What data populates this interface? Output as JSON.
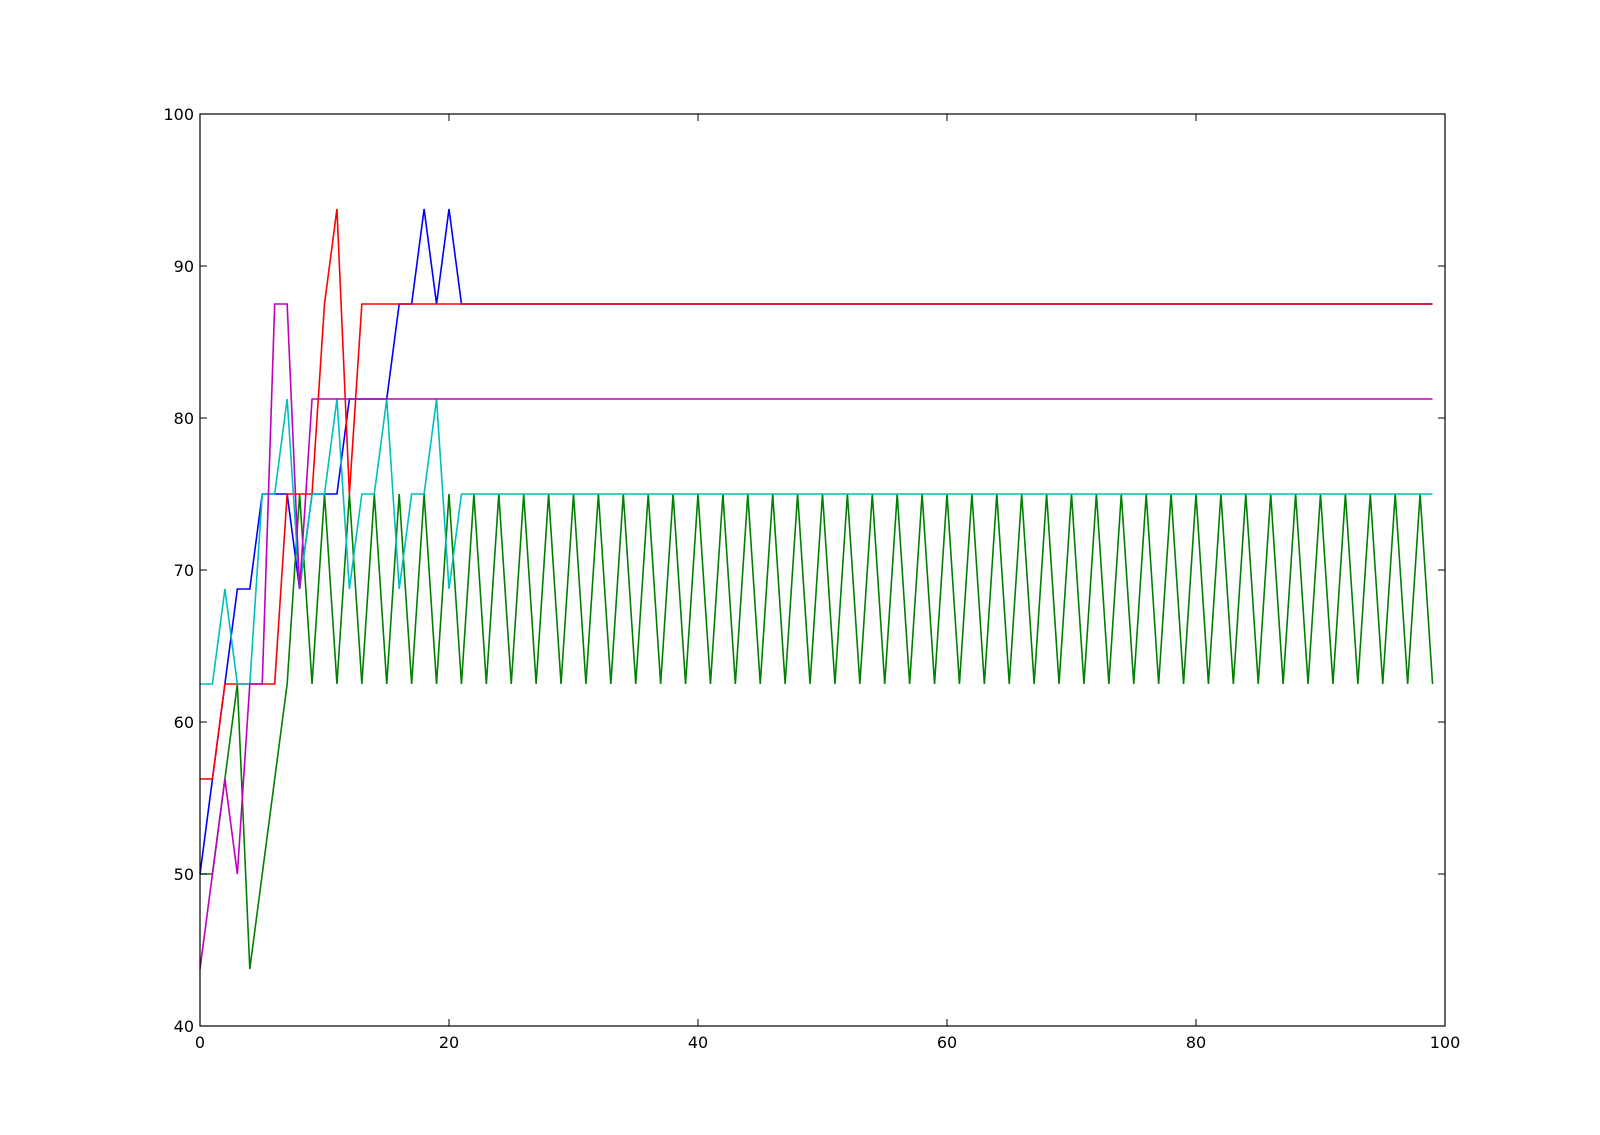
{
  "chart_data": {
    "type": "line",
    "title": "",
    "xlabel": "",
    "ylabel": "",
    "xlim": [
      0,
      100
    ],
    "ylim": [
      40,
      100
    ],
    "xticks": [
      0,
      20,
      40,
      60,
      80,
      100
    ],
    "yticks": [
      40,
      50,
      60,
      70,
      80,
      90,
      100
    ],
    "xtick_labels": [
      "0",
      "20",
      "40",
      "60",
      "80",
      "100"
    ],
    "ytick_labels": [
      "40",
      "50",
      "60",
      "70",
      "80",
      "90",
      "100"
    ],
    "grid": false,
    "legend": "none",
    "x": [
      0,
      1,
      2,
      3,
      4,
      5,
      6,
      7,
      8,
      9,
      10,
      11,
      12,
      13,
      14,
      15,
      16,
      17,
      18,
      19,
      20,
      21,
      22,
      23,
      24,
      25,
      26,
      27,
      28,
      29,
      30,
      31,
      32,
      33,
      34,
      35,
      36,
      37,
      38,
      39,
      40,
      41,
      42,
      43,
      44,
      45,
      46,
      47,
      48,
      49,
      50,
      51,
      52,
      53,
      54,
      55,
      56,
      57,
      58,
      59,
      60,
      61,
      62,
      63,
      64,
      65,
      66,
      67,
      68,
      69,
      70,
      71,
      72,
      73,
      74,
      75,
      76,
      77,
      78,
      79,
      80,
      81,
      82,
      83,
      84,
      85,
      86,
      87,
      88,
      89,
      90,
      91,
      92,
      93,
      94,
      95,
      96,
      97,
      98,
      99
    ],
    "series": [
      {
        "color": "#0000ff",
        "head": [
          50,
          56.25,
          62.5,
          68.75,
          68.75,
          75,
          75,
          75,
          68.75,
          75,
          75,
          75,
          81.25,
          81.25,
          81.25,
          81.25,
          87.5,
          87.5,
          93.75,
          87.5,
          93.75,
          87.5
        ],
        "tail_value": 87.5
      },
      {
        "color": "#008000",
        "head": [
          50,
          50,
          56.25,
          62.5,
          43.75,
          50,
          56.25,
          62.5,
          75,
          62.5,
          75,
          62.5,
          75,
          62.5,
          75,
          62.5,
          75,
          62.5,
          75,
          62.5,
          75,
          62.5
        ],
        "alternate": [
          75,
          62.5
        ]
      },
      {
        "color": "#ff0000",
        "head": [
          56.25,
          56.25,
          62.5,
          62.5,
          62.5,
          62.5,
          62.5,
          75,
          75,
          75,
          87.5,
          93.75,
          75,
          87.5
        ],
        "tail_value": 87.5
      },
      {
        "color": "#00bfbf",
        "head": [
          62.5,
          62.5,
          68.75,
          62.5,
          62.5,
          75,
          75,
          81.25,
          68.75,
          75,
          75,
          81.25,
          68.75,
          75,
          75,
          81.25,
          68.75,
          75,
          75,
          81.25,
          68.75,
          75
        ],
        "tail_value": 75
      },
      {
        "color": "#bf00bf",
        "head": [
          43.75,
          50,
          56.25,
          50,
          62.5,
          62.5,
          87.5,
          87.5,
          68.75,
          81.25
        ],
        "tail_value": 81.25
      }
    ]
  }
}
